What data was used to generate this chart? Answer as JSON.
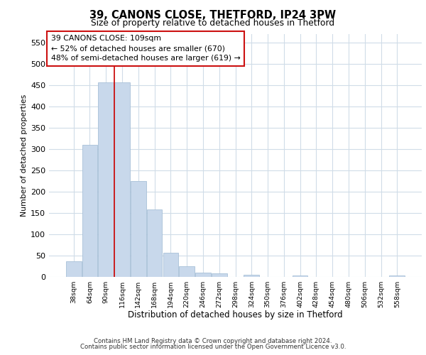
{
  "title1": "39, CANONS CLOSE, THETFORD, IP24 3PW",
  "title2": "Size of property relative to detached houses in Thetford",
  "xlabel": "Distribution of detached houses by size in Thetford",
  "ylabel": "Number of detached properties",
  "categories": [
    "38sqm",
    "64sqm",
    "90sqm",
    "116sqm",
    "142sqm",
    "168sqm",
    "194sqm",
    "220sqm",
    "246sqm",
    "272sqm",
    "298sqm",
    "324sqm",
    "350sqm",
    "376sqm",
    "402sqm",
    "428sqm",
    "454sqm",
    "480sqm",
    "506sqm",
    "532sqm",
    "558sqm"
  ],
  "values": [
    37,
    310,
    456,
    456,
    225,
    158,
    57,
    25,
    10,
    8,
    0,
    5,
    0,
    0,
    3,
    0,
    0,
    0,
    0,
    0,
    3
  ],
  "bar_color": "#c8d8eb",
  "bar_edge_color": "#a8c0d8",
  "vline_color": "#cc1111",
  "vline_position": 2.5,
  "annotation_title": "39 CANONS CLOSE: 109sqm",
  "annotation_line1": "← 52% of detached houses are smaller (670)",
  "annotation_line2": "48% of semi-detached houses are larger (619) →",
  "footer1": "Contains HM Land Registry data © Crown copyright and database right 2024.",
  "footer2": "Contains public sector information licensed under the Open Government Licence v3.0.",
  "ylim": [
    0,
    570
  ],
  "yticks": [
    0,
    50,
    100,
    150,
    200,
    250,
    300,
    350,
    400,
    450,
    500,
    550
  ],
  "fig_bg": "#ffffff",
  "plot_bg": "#ffffff",
  "grid_color": "#d0dce8"
}
